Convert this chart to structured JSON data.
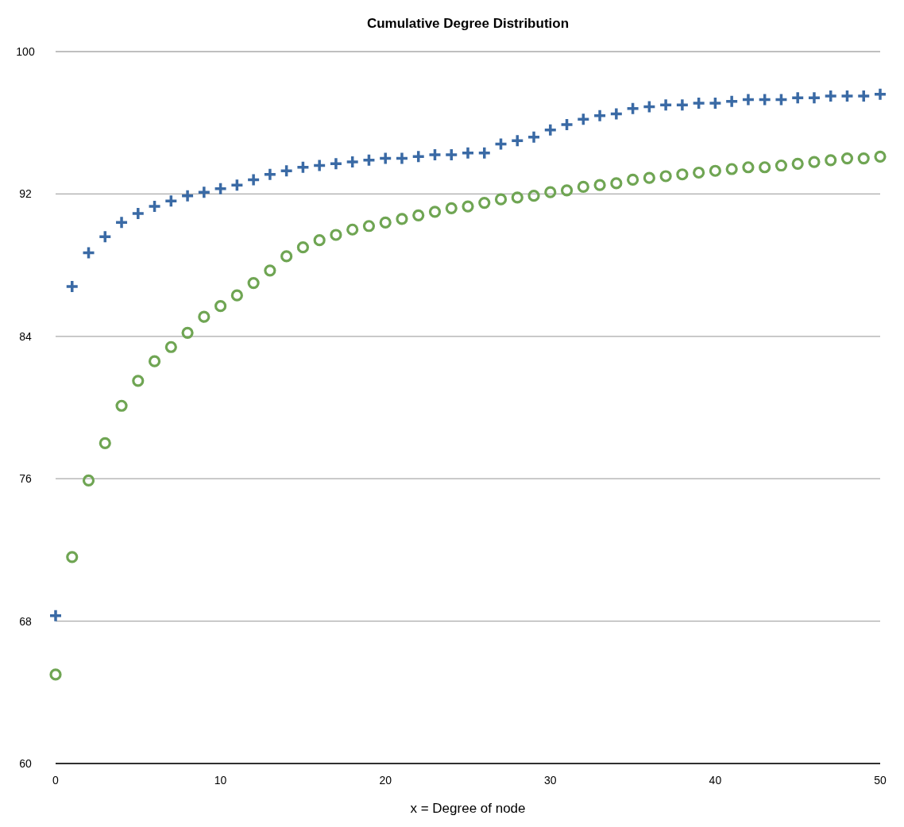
{
  "chart_data": {
    "type": "scatter",
    "title": "Cumulative Degree Distribution",
    "xlabel": "x = Degree of node",
    "x": [
      0,
      1,
      2,
      3,
      4,
      5,
      6,
      7,
      8,
      9,
      10,
      11,
      12,
      13,
      14,
      15,
      16,
      17,
      18,
      19,
      20,
      21,
      22,
      23,
      24,
      25,
      26,
      27,
      28,
      29,
      30,
      31,
      32,
      33,
      34,
      35,
      36,
      37,
      38,
      39,
      40,
      41,
      42,
      43,
      44,
      45,
      46,
      47,
      48,
      49,
      50
    ],
    "series": [
      {
        "color": "#3a6aa5",
        "marker": "cross",
        "values": [
          68.3,
          86.8,
          88.7,
          89.6,
          90.4,
          90.9,
          91.3,
          91.6,
          91.9,
          92.1,
          92.3,
          92.5,
          92.8,
          93.1,
          93.3,
          93.5,
          93.6,
          93.7,
          93.8,
          93.9,
          94.0,
          94.0,
          94.1,
          94.2,
          94.2,
          94.3,
          94.3,
          94.8,
          95.0,
          95.2,
          95.6,
          95.9,
          96.2,
          96.4,
          96.5,
          96.8,
          96.9,
          97.0,
          97.0,
          97.1,
          97.1,
          97.2,
          97.3,
          97.3,
          97.3,
          97.4,
          97.4,
          97.5,
          97.5,
          97.5,
          97.6
        ]
      },
      {
        "color": "#6fa553",
        "marker": "circle",
        "values": [
          65.0,
          71.6,
          75.9,
          78.0,
          80.1,
          81.5,
          82.6,
          83.4,
          84.2,
          85.1,
          85.7,
          86.3,
          87.0,
          87.7,
          88.5,
          89.0,
          89.4,
          89.7,
          90.0,
          90.2,
          90.4,
          90.6,
          90.8,
          91.0,
          91.2,
          91.3,
          91.5,
          91.7,
          91.8,
          91.9,
          92.1,
          92.2,
          92.4,
          92.5,
          92.6,
          92.8,
          92.9,
          93.0,
          93.1,
          93.2,
          93.3,
          93.4,
          93.5,
          93.5,
          93.6,
          93.7,
          93.8,
          93.9,
          94.0,
          94.0,
          94.1
        ]
      }
    ],
    "xlim": [
      0,
      50
    ],
    "xticks": [
      0,
      10,
      20,
      30,
      40,
      50
    ],
    "ylim": [
      60,
      100
    ],
    "yticks": [
      60,
      68,
      76,
      84,
      92,
      100
    ],
    "grid": "y"
  }
}
